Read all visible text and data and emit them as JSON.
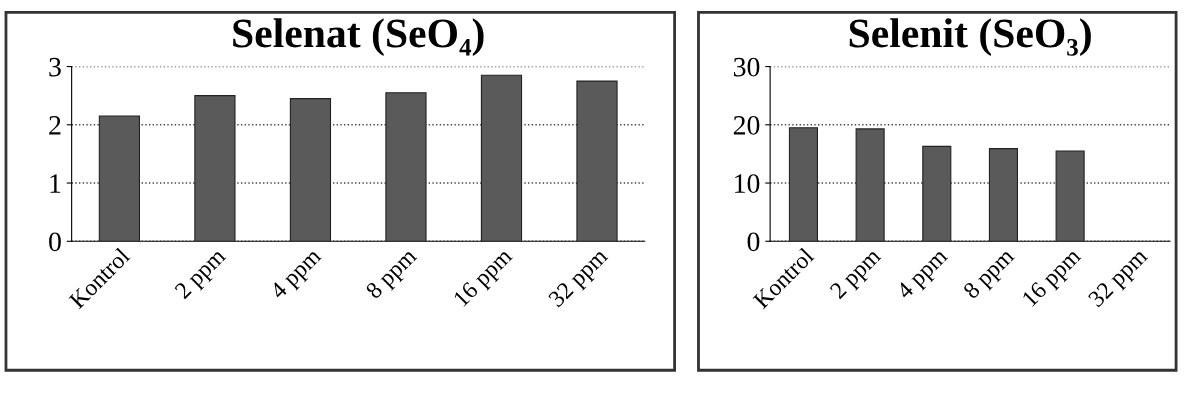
{
  "chart_data": [
    {
      "type": "bar",
      "title": "Selenat (SeO₄)",
      "categories": [
        "Kontrol",
        "2 ppm",
        "4 ppm",
        "8 ppm",
        "16 ppm",
        "32 ppm"
      ],
      "color": "#5a5a5a",
      "values": [
        2.15,
        2.5,
        2.45,
        2.55,
        2.85,
        2.75
      ],
      "ylim": [
        0,
        3
      ],
      "yticks": [
        0,
        1,
        2,
        3
      ],
      "grid": "y",
      "legend": false
    },
    {
      "type": "bar",
      "title": "Selenit (SeO₃)",
      "categories": [
        "Kontrol",
        "2 ppm",
        "4 ppm",
        "8 ppm",
        "16 ppm",
        "32 ppm"
      ],
      "color": "#5a5a5a",
      "values": [
        19.5,
        19.3,
        16.3,
        15.9,
        15.5,
        null
      ],
      "ylim": [
        0,
        30
      ],
      "yticks": [
        0,
        10,
        20,
        30
      ],
      "grid": "y",
      "legend": false
    }
  ]
}
